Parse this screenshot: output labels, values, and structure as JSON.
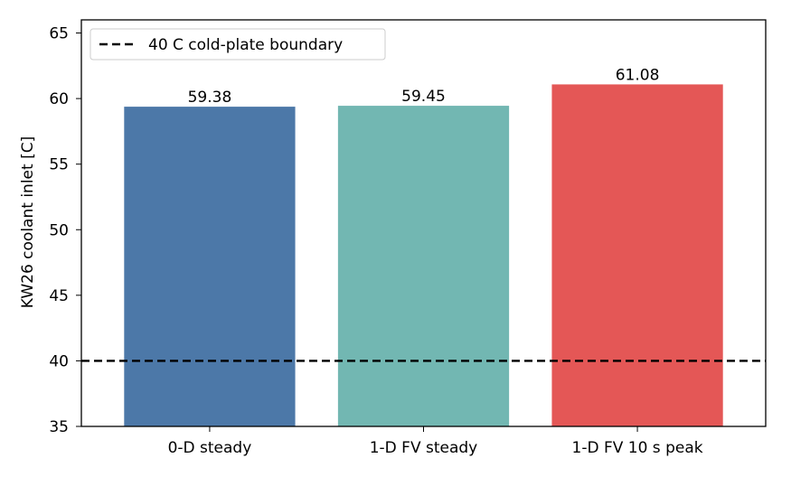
{
  "chart_data": {
    "type": "bar",
    "categories": [
      "0-D steady",
      "1-D FV steady",
      "1-D FV 10 s peak"
    ],
    "values": [
      59.38,
      59.45,
      61.08
    ],
    "value_labels": [
      "59.38",
      "59.45",
      "61.08"
    ],
    "colors": [
      "#4c78a8",
      "#72b7b2",
      "#e45756"
    ],
    "title": "",
    "xlabel": "",
    "ylabel": "KW26 coolant inlet [C]",
    "ylim": [
      35,
      66
    ],
    "yticks": [
      35,
      40,
      45,
      50,
      55,
      60,
      65
    ],
    "ytick_labels": [
      "35",
      "40",
      "45",
      "50",
      "55",
      "60",
      "65"
    ],
    "reference_line": {
      "y": 40,
      "label": "40 C cold-plate boundary",
      "color": "#000000",
      "style": "dashed"
    },
    "legend": {
      "placement": "top-left",
      "entries": [
        "40 C cold-plate boundary"
      ]
    },
    "grid": false
  }
}
